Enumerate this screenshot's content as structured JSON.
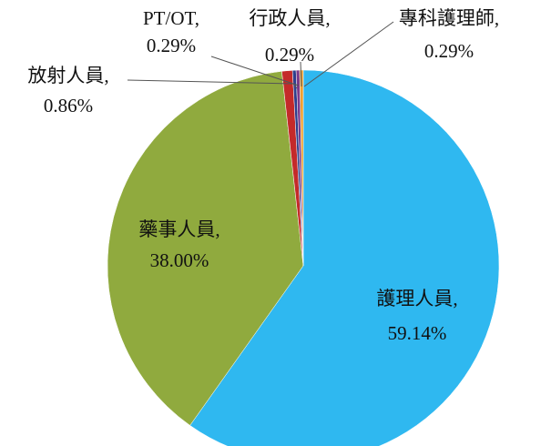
{
  "chart_data": {
    "type": "pie",
    "categories": [
      "護理人員,",
      "藥事人員,",
      "放射人員,",
      "PT/OT,",
      "行政人員,",
      "專科護理師,"
    ],
    "values": [
      59.14,
      38.0,
      0.86,
      0.29,
      0.29,
      0.29
    ],
    "value_labels": [
      "59.14%",
      "38.00%",
      "0.86%",
      "0.29%",
      "0.29%",
      "0.29%"
    ],
    "colors": [
      "#2fb8f0",
      "#90aa3e",
      "#c42a2a",
      "#2d3f8c",
      "#7a3a8a",
      "#f0a030"
    ]
  }
}
